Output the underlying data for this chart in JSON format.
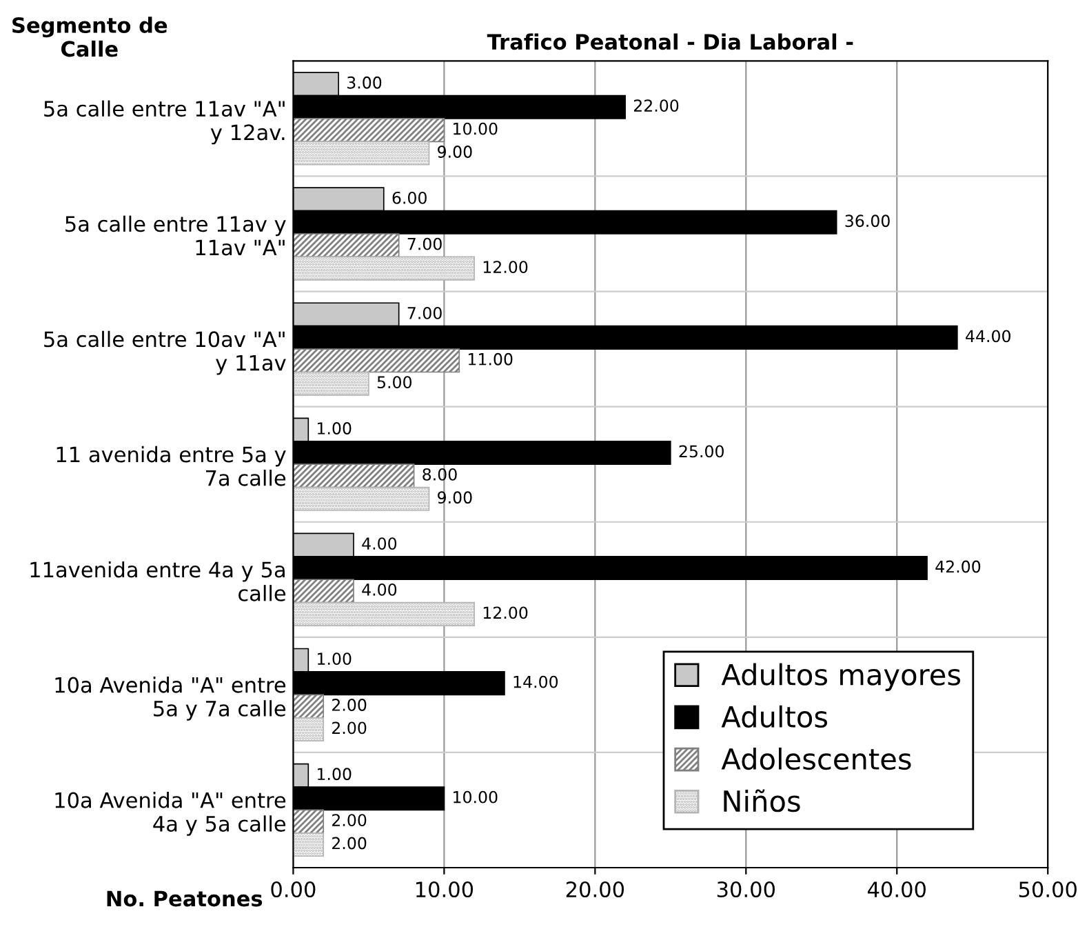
{
  "chart_data": {
    "type": "bar",
    "orientation": "horizontal",
    "title": "Trafico Peatonal - Dia Laboral -",
    "ylabel": "Segmento de\nCalle",
    "xlabel": "No. Peatones",
    "categories": [
      "5a calle entre 11av \"A\"\ny 12av.",
      "5a calle entre 11av y\n11av \"A\"",
      "5a calle entre 10av \"A\"\ny 11av",
      "11 avenida entre 5a y\n7a calle",
      "11avenida entre 4a y 5a\ncalle",
      "10a Avenida \"A\" entre\n5a y 7a calle",
      "10a Avenida \"A\" entre\n4a y 5a calle"
    ],
    "series": [
      {
        "name": "Adultos mayores",
        "color": "#c8c8c8",
        "values": [
          3,
          6,
          7,
          1,
          4,
          1,
          1
        ],
        "value_labels": [
          "3.00",
          "6.00",
          "7.00",
          "1.00",
          "4.00",
          "1.00",
          "1.00"
        ]
      },
      {
        "name": "Adultos",
        "color": "#000000",
        "values": [
          22,
          36,
          44,
          25,
          42,
          14,
          10
        ],
        "value_labels": [
          "22.00",
          "36.00",
          "44.00",
          "25.00",
          "42.00",
          "14.00",
          "10.00"
        ]
      },
      {
        "name": "Adolescentes",
        "color": "#808080",
        "values": [
          10,
          7,
          11,
          8,
          4,
          2,
          2
        ],
        "value_labels": [
          "10.00",
          "7.00",
          "11.00",
          "8.00",
          "4.00",
          "2.00",
          "2.00"
        ]
      },
      {
        "name": "Niños",
        "color": "#b4b4b4",
        "values": [
          9,
          12,
          5,
          9,
          12,
          2,
          2
        ],
        "value_labels": [
          "9.00",
          "12.00",
          "5.00",
          "9.00",
          "12.00",
          "2.00",
          "2.00"
        ]
      }
    ],
    "xlim": [
      0,
      50
    ],
    "xticks": [
      {
        "value": 0,
        "label": "0.00"
      },
      {
        "value": 10,
        "label": "10.00"
      },
      {
        "value": 20,
        "label": "20.00"
      },
      {
        "value": 30,
        "label": "30.00"
      },
      {
        "value": 40,
        "label": "40.00"
      },
      {
        "value": 50,
        "label": "50.00"
      }
    ],
    "grid": "x",
    "legend": "bottom right"
  }
}
